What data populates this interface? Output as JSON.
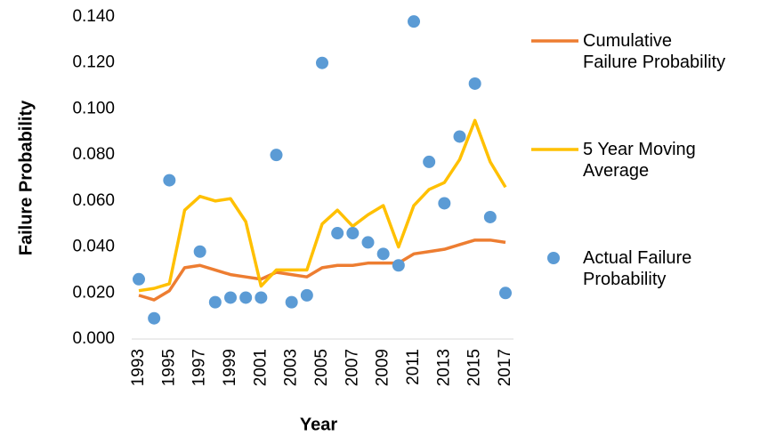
{
  "chart_data": {
    "type": "line",
    "x_label": "Year",
    "y_label": "Failure Probability",
    "x": [
      1993,
      1994,
      1995,
      1996,
      1997,
      1998,
      1999,
      2000,
      2001,
      2002,
      2003,
      2004,
      2005,
      2006,
      2007,
      2008,
      2009,
      2010,
      2011,
      2012,
      2013,
      2014,
      2015,
      2016,
      2017
    ],
    "xlim": [
      1993,
      2017
    ],
    "xticks": [
      1993,
      1995,
      1997,
      1999,
      2001,
      2003,
      2005,
      2007,
      2009,
      2011,
      2013,
      2015,
      2017
    ],
    "ylim": [
      0,
      0.14
    ],
    "yticks": [
      {
        "value": 0,
        "label": "0.000"
      },
      {
        "value": 0.02,
        "label": "0.020"
      },
      {
        "value": 0.04,
        "label": "0.040"
      },
      {
        "value": 0.06,
        "label": "0.060"
      },
      {
        "value": 0.08,
        "label": "0.080"
      },
      {
        "value": 0.1,
        "label": "0.100"
      },
      {
        "value": 0.12,
        "label": "0.120"
      },
      {
        "value": 0.14,
        "label": "0.140"
      }
    ],
    "grid": false,
    "legend": "right",
    "series": [
      {
        "name": "Cumulative Failure Probability",
        "color": "#ed7d31",
        "style": "line",
        "values": [
          0.019,
          0.017,
          0.021,
          0.031,
          0.032,
          0.03,
          0.028,
          0.027,
          0.026,
          0.029,
          0.028,
          0.027,
          0.031,
          0.032,
          0.032,
          0.033,
          0.033,
          0.033,
          0.037,
          0.038,
          0.039,
          0.041,
          0.043,
          0.043,
          0.042
        ]
      },
      {
        "name": "5 Year Moving Average",
        "color": "#ffc000",
        "style": "line",
        "values": [
          0.021,
          0.022,
          0.024,
          0.056,
          0.062,
          0.06,
          0.061,
          0.051,
          0.023,
          0.03,
          0.03,
          0.03,
          0.05,
          0.056,
          0.049,
          0.054,
          0.058,
          0.04,
          0.058,
          0.065,
          0.068,
          0.078,
          0.095,
          0.077,
          0.066
        ]
      },
      {
        "name": "Actual Failure Probability",
        "color": "#5b9bd5",
        "style": "markers",
        "values": [
          0.026,
          0.009,
          0.069,
          null,
          0.038,
          0.016,
          0.018,
          0.018,
          0.018,
          0.08,
          0.016,
          0.019,
          0.12,
          0.046,
          0.046,
          0.042,
          0.037,
          0.032,
          0.138,
          0.077,
          0.059,
          0.088,
          0.111,
          0.053,
          0.02
        ]
      }
    ]
  }
}
